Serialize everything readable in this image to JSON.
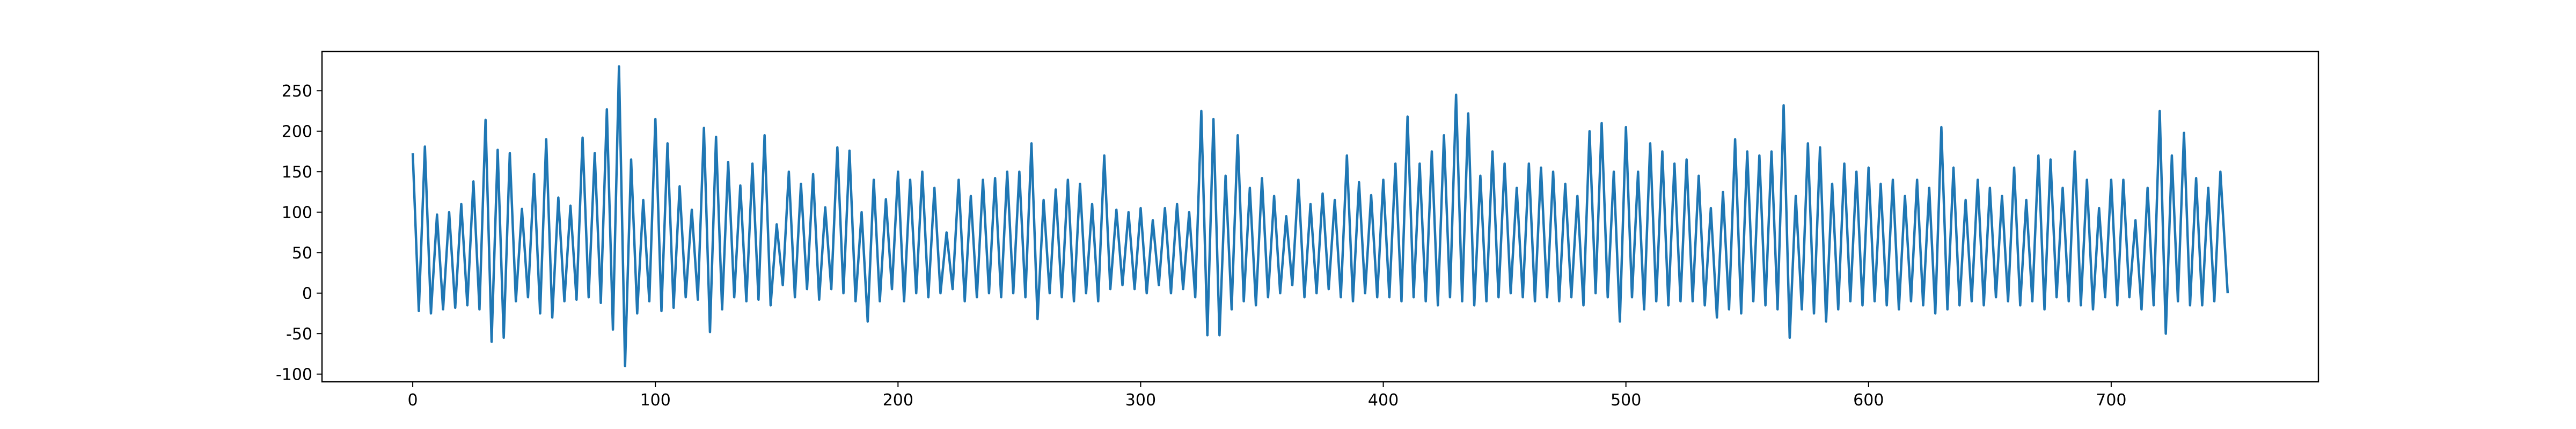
{
  "chart_data": {
    "type": "line",
    "color": "#1f77b4",
    "xlim": [
      -37.4,
      785.4
    ],
    "ylim": [
      -109.5,
      298.5
    ],
    "xticks": [
      0,
      100,
      200,
      300,
      400,
      500,
      600,
      700
    ],
    "yticks": [
      -100,
      -50,
      0,
      50,
      100,
      150,
      200,
      250
    ],
    "x": [
      0,
      2.5,
      5,
      7.5,
      10,
      12.5,
      15,
      17.5,
      20,
      22.5,
      25,
      27.5,
      30,
      32.5,
      35,
      37.5,
      40,
      42.5,
      45,
      47.5,
      50,
      52.5,
      55,
      57.5,
      60,
      62.5,
      65,
      67.5,
      70,
      72.5,
      75,
      77.5,
      80,
      82.5,
      85,
      87.5,
      90,
      92.5,
      95,
      97.5,
      100,
      102.5,
      105,
      107.5,
      110,
      112.5,
      115,
      117.5,
      120,
      122.5,
      125,
      127.5,
      130,
      132.5,
      135,
      137.5,
      140,
      142.5,
      145,
      147.5,
      150,
      152.5,
      155,
      157.5,
      160,
      162.5,
      165,
      167.5,
      170,
      172.5,
      175,
      177.5,
      180,
      182.5,
      185,
      187.5,
      190,
      192.5,
      195,
      197.5,
      200,
      202.5,
      205,
      207.5,
      210,
      212.5,
      215,
      217.5,
      220,
      222.5,
      225,
      227.5,
      230,
      232.5,
      235,
      237.5,
      240,
      242.5,
      245,
      247.5,
      250,
      252.5,
      255,
      257.5,
      260,
      262.5,
      265,
      267.5,
      270,
      272.5,
      275,
      277.5,
      280,
      282.5,
      285,
      287.5,
      290,
      292.5,
      295,
      297.5,
      300,
      302.5,
      305,
      307.5,
      310,
      312.5,
      315,
      317.5,
      320,
      322.5,
      325,
      327.5,
      330,
      332.5,
      335,
      337.5,
      340,
      342.5,
      345,
      347.5,
      350,
      352.5,
      355,
      357.5,
      360,
      362.5,
      365,
      367.5,
      370,
      372.5,
      375,
      377.5,
      380,
      382.5,
      385,
      387.5,
      390,
      392.5,
      395,
      397.5,
      400,
      402.5,
      405,
      407.5,
      410,
      412.5,
      415,
      417.5,
      420,
      422.5,
      425,
      427.5,
      430,
      432.5,
      435,
      437.5,
      440,
      442.5,
      445,
      447.5,
      450,
      452.5,
      455,
      457.5,
      460,
      462.5,
      465,
      467.5,
      470,
      472.5,
      475,
      477.5,
      480,
      482.5,
      485,
      487.5,
      490,
      492.5,
      495,
      497.5,
      500,
      502.5,
      505,
      507.5,
      510,
      512.5,
      515,
      517.5,
      520,
      522.5,
      525,
      527.5,
      530,
      532.5,
      535,
      537.5,
      540,
      542.5,
      545,
      547.5,
      550,
      552.5,
      555,
      557.5,
      560,
      562.5,
      565,
      567.5,
      570,
      572.5,
      575,
      577.5,
      580,
      582.5,
      585,
      587.5,
      590,
      592.5,
      595,
      597.5,
      600,
      602.5,
      605,
      607.5,
      610,
      612.5,
      615,
      617.5,
      620,
      622.5,
      625,
      627.5,
      630,
      632.5,
      635,
      637.5,
      640,
      642.5,
      645,
      647.5,
      650,
      652.5,
      655,
      657.5,
      660,
      662.5,
      665,
      667.5,
      670,
      672.5,
      675,
      677.5,
      680,
      682.5,
      685,
      687.5,
      690,
      692.5,
      695,
      697.5,
      700,
      702.5,
      705,
      707.5,
      710,
      712.5,
      715,
      717.5,
      720,
      722.5,
      725,
      727.5,
      730,
      732.5,
      735,
      737.5,
      740,
      742.5,
      745,
      748
    ],
    "values": [
      173,
      -22,
      181,
      -25,
      97,
      -20,
      100,
      -18,
      110,
      -15,
      138,
      -20,
      214,
      -60,
      177,
      -55,
      173,
      -10,
      104,
      -5,
      147,
      -25,
      190,
      -30,
      118,
      -10,
      108,
      -8,
      192,
      -5,
      173,
      -12,
      227,
      -45,
      280,
      -90,
      165,
      -25,
      115,
      -10,
      215,
      -22,
      185,
      -18,
      132,
      -5,
      103,
      -8,
      204,
      -48,
      193,
      -20,
      162,
      -5,
      133,
      -10,
      160,
      -8,
      195,
      -15,
      85,
      10,
      150,
      -5,
      135,
      5,
      147,
      -8,
      106,
      5,
      180,
      0,
      176,
      -10,
      100,
      -35,
      140,
      -10,
      116,
      5,
      150,
      -10,
      140,
      0,
      150,
      -5,
      130,
      0,
      75,
      5,
      140,
      -10,
      120,
      -5,
      140,
      0,
      142,
      -5,
      150,
      0,
      150,
      -5,
      185,
      -32,
      115,
      0,
      128,
      -5,
      140,
      -10,
      135,
      0,
      110,
      -10,
      170,
      5,
      103,
      10,
      100,
      5,
      105,
      0,
      90,
      10,
      105,
      0,
      110,
      5,
      100,
      -5,
      225,
      -52,
      215,
      -52,
      145,
      -20,
      195,
      -10,
      130,
      -15,
      142,
      -5,
      120,
      0,
      95,
      10,
      140,
      -5,
      110,
      0,
      123,
      5,
      115,
      -5,
      170,
      -10,
      137,
      0,
      121,
      -5,
      140,
      -5,
      160,
      -10,
      218,
      -5,
      160,
      -10,
      175,
      -15,
      195,
      -5,
      245,
      -10,
      222,
      -15,
      145,
      -10,
      175,
      -5,
      160,
      0,
      130,
      -5,
      160,
      -10,
      155,
      -5,
      150,
      -10,
      135,
      -5,
      120,
      -15,
      200,
      0,
      210,
      -5,
      150,
      -35,
      205,
      -5,
      150,
      -20,
      185,
      -10,
      175,
      -15,
      160,
      -10,
      165,
      -10,
      145,
      -15,
      105,
      -30,
      125,
      -20,
      190,
      -25,
      175,
      -10,
      170,
      -15,
      175,
      -20,
      232,
      -55,
      120,
      -20,
      185,
      -25,
      180,
      -35,
      135,
      -20,
      160,
      -10,
      150,
      -15,
      155,
      -10,
      135,
      -15,
      140,
      -20,
      120,
      -10,
      140,
      -15,
      130,
      -25,
      205,
      -20,
      155,
      -15,
      115,
      -10,
      140,
      -15,
      130,
      -5,
      120,
      -10,
      155,
      -15,
      115,
      -10,
      170,
      -20,
      165,
      -5,
      130,
      -10,
      175,
      -15,
      140,
      -20,
      105,
      -5,
      140,
      -15,
      140,
      -5,
      90,
      -20,
      130,
      -15,
      225,
      -50,
      170,
      -10,
      198,
      -15,
      142,
      -15,
      130,
      -10,
      150,
      0
    ]
  }
}
